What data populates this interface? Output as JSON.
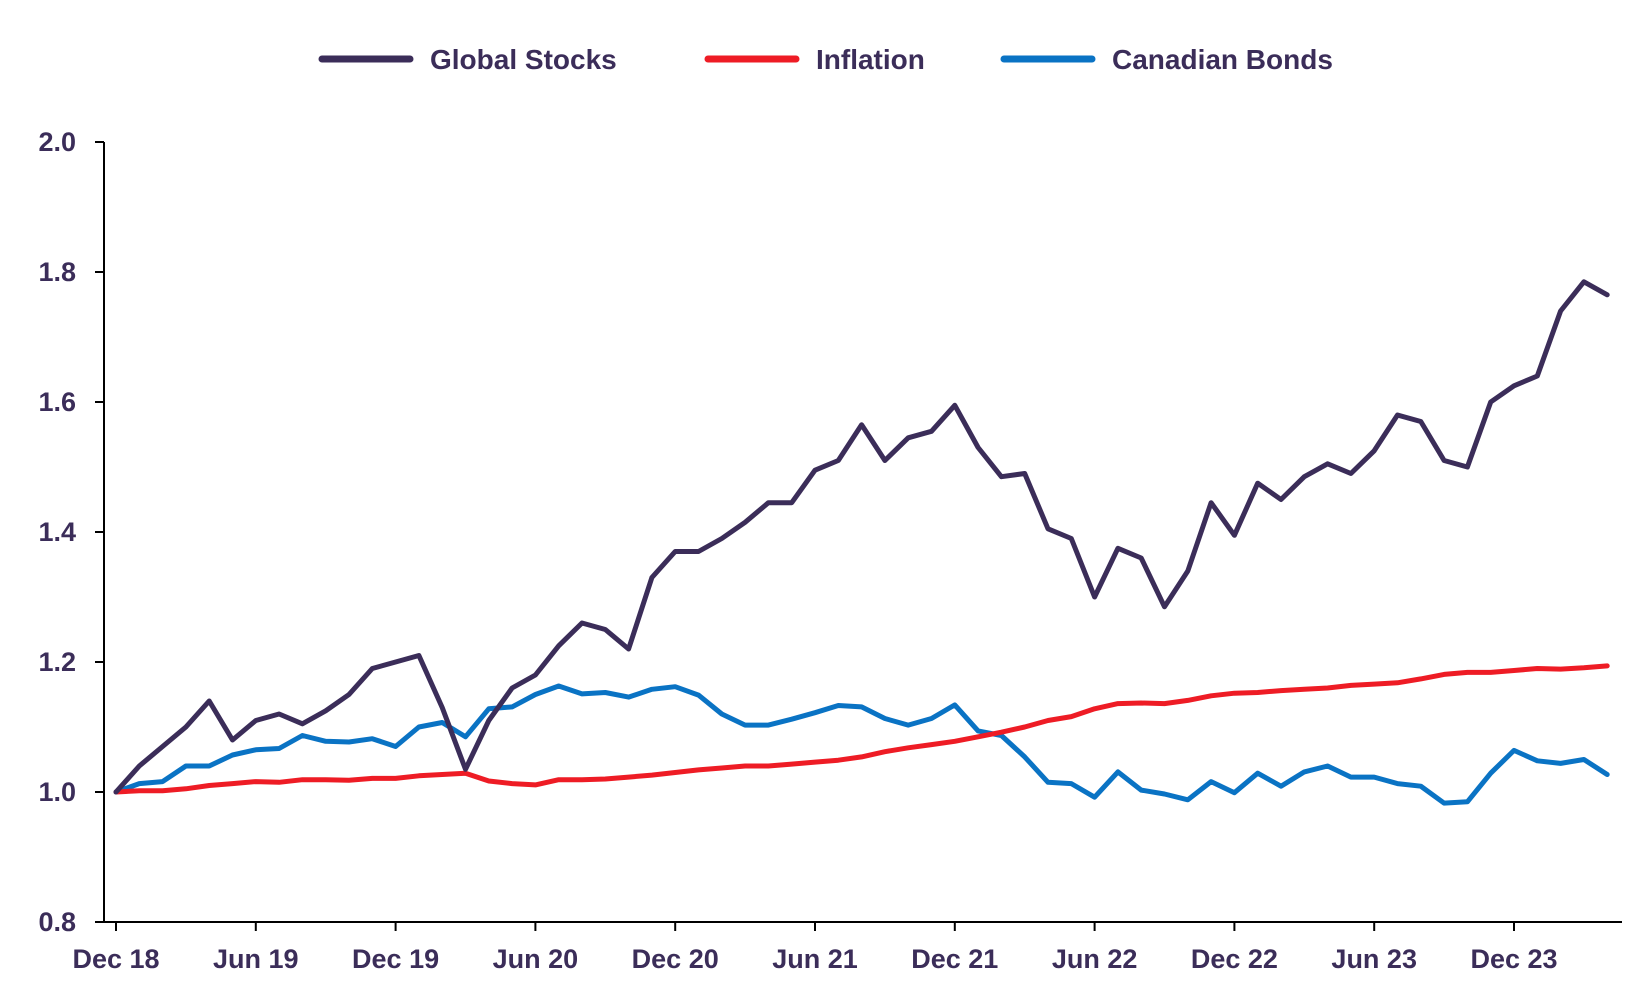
{
  "chart_data": {
    "type": "line",
    "title": "",
    "xlabel": "",
    "ylabel": "",
    "ylim": [
      0.8,
      2.0
    ],
    "yticks": [
      "0.8",
      "1.0",
      "1.2",
      "1.4",
      "1.6",
      "1.8",
      "2.0"
    ],
    "xtick_labels": [
      "Dec 18",
      "Jun 19",
      "Dec 19",
      "Jun 20",
      "Dec 20",
      "Jun 21",
      "Dec 21",
      "Jun 22",
      "Dec 22",
      "Jun 23",
      "Dec 23"
    ],
    "x_period": "monthly, Dec 2018 to May 2024",
    "legend_position": "top-center",
    "grid": false,
    "text_color": "#3b2d59",
    "series": [
      {
        "name": "Global Stocks",
        "color": "#3b2d59",
        "values": [
          1.0,
          1.04,
          1.07,
          1.1,
          1.14,
          1.08,
          1.11,
          1.12,
          1.105,
          1.125,
          1.15,
          1.19,
          1.2,
          1.21,
          1.13,
          1.035,
          1.11,
          1.16,
          1.18,
          1.225,
          1.26,
          1.25,
          1.22,
          1.33,
          1.37,
          1.37,
          1.39,
          1.415,
          1.445,
          1.445,
          1.495,
          1.51,
          1.565,
          1.51,
          1.545,
          1.555,
          1.595,
          1.53,
          1.485,
          1.49,
          1.405,
          1.39,
          1.3,
          1.375,
          1.36,
          1.285,
          1.34,
          1.445,
          1.395,
          1.475,
          1.45,
          1.485,
          1.505,
          1.49,
          1.525,
          1.58,
          1.57,
          1.51,
          1.5,
          1.6,
          1.625,
          1.64,
          1.74,
          1.785,
          1.765
        ]
      },
      {
        "name": "Inflation",
        "color": "#ee1c25",
        "values": [
          1.0,
          1.002,
          1.002,
          1.005,
          1.01,
          1.013,
          1.016,
          1.015,
          1.019,
          1.019,
          1.018,
          1.021,
          1.021,
          1.025,
          1.027,
          1.029,
          1.017,
          1.013,
          1.011,
          1.019,
          1.019,
          1.02,
          1.023,
          1.026,
          1.03,
          1.034,
          1.037,
          1.04,
          1.04,
          1.043,
          1.046,
          1.049,
          1.054,
          1.062,
          1.068,
          1.073,
          1.078,
          1.085,
          1.092,
          1.1,
          1.11,
          1.116,
          1.128,
          1.136,
          1.137,
          1.136,
          1.141,
          1.148,
          1.152,
          1.153,
          1.156,
          1.158,
          1.16,
          1.164,
          1.166,
          1.168,
          1.174,
          1.181,
          1.184,
          1.184,
          1.187,
          1.19,
          1.189,
          1.191,
          1.194
        ]
      },
      {
        "name": "Canadian Bonds",
        "color": "#0a73c4",
        "values": [
          1.0,
          1.013,
          1.016,
          1.04,
          1.04,
          1.057,
          1.065,
          1.067,
          1.087,
          1.078,
          1.077,
          1.082,
          1.07,
          1.1,
          1.107,
          1.085,
          1.128,
          1.131,
          1.15,
          1.163,
          1.151,
          1.153,
          1.146,
          1.158,
          1.162,
          1.149,
          1.12,
          1.103,
          1.103,
          1.112,
          1.122,
          1.133,
          1.131,
          1.113,
          1.103,
          1.113,
          1.134,
          1.094,
          1.087,
          1.054,
          1.015,
          1.013,
          0.992,
          1.031,
          1.003,
          0.997,
          0.988,
          1.016,
          0.999,
          1.029,
          1.009,
          1.031,
          1.04,
          1.023,
          1.023,
          1.013,
          1.009,
          0.983,
          0.985,
          1.029,
          1.064,
          1.048,
          1.044,
          1.05,
          1.027
        ]
      }
    ]
  }
}
